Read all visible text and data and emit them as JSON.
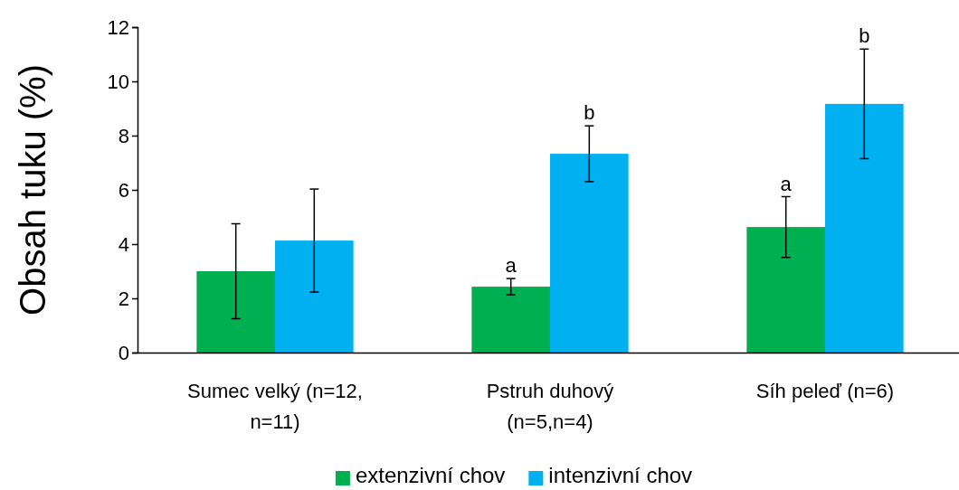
{
  "chart_data": {
    "type": "bar",
    "ylabel": "Obsah tuku (%)",
    "categories": [
      "Sumec velký (n=12, n=11)",
      "Pstruh duhový (n=5,n=4)",
      "Síh peleď (n=6)"
    ],
    "series": [
      {
        "name": "extenzivní chov",
        "color": "#00b050",
        "values": [
          3.0,
          2.43,
          4.63
        ],
        "errors": [
          1.75,
          0.3,
          1.12
        ],
        "value_labels": [
          null,
          "a",
          "a"
        ]
      },
      {
        "name": "intenzivní chov",
        "color": "#00b0f0",
        "values": [
          4.13,
          7.33,
          9.17
        ],
        "errors": [
          1.9,
          1.03,
          2.02
        ],
        "value_labels": [
          null,
          "b",
          "b"
        ]
      }
    ],
    "ylim": [
      0,
      12
    ],
    "yticks": [
      0,
      2,
      4,
      6,
      8,
      10,
      12
    ],
    "grid": false,
    "legend": "bottom"
  }
}
